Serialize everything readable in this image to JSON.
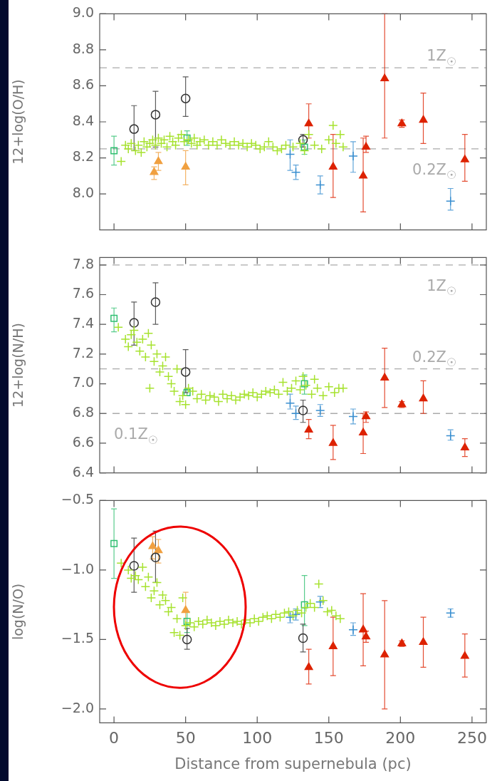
{
  "chart_data": [
    {
      "type": "scatter",
      "ylabel": "12+log(O/H)",
      "xlim": [
        -10,
        260
      ],
      "xticks": [
        0,
        50,
        100,
        150,
        200,
        250
      ],
      "ylim": [
        7.8,
        9.0
      ],
      "yticks": [
        {
          "value": 8.0,
          "label": "8.0"
        },
        {
          "value": 8.2,
          "label": "8.2"
        },
        {
          "value": 8.4,
          "label": "8.4"
        },
        {
          "value": 8.6,
          "label": "8.6"
        },
        {
          "value": 8.8,
          "label": "8.8"
        },
        {
          "value": 9.0,
          "label": "9.0"
        }
      ],
      "tick_labels": "y",
      "grid": false,
      "legend": false,
      "ref_lines": [
        {
          "axis": "y",
          "value": 8.7,
          "label": "1Z$_{☉}$",
          "color": "#aaaaaa",
          "line_style": "dashed"
        },
        {
          "axis": "y",
          "value": 8.25,
          "label": "0.2Z$_{☉}$",
          "color": "#aaaaaa",
          "line_style": "dashed"
        }
      ],
      "series": [
        {
          "type": "scatter",
          "marker": "cross",
          "color": "#a6e22e",
          "x": [
            5,
            8,
            10,
            12,
            15,
            17,
            19,
            21,
            23,
            25,
            27,
            29,
            31,
            33,
            35,
            37,
            39,
            41,
            43,
            45,
            47,
            49,
            52,
            54,
            56,
            58,
            60,
            63,
            66,
            69,
            72,
            75,
            78,
            81,
            84,
            87,
            90,
            93,
            96,
            99,
            102,
            105,
            108,
            111,
            114,
            117,
            120,
            125,
            130,
            133,
            136,
            140,
            145,
            150,
            153,
            155,
            158,
            160
          ],
          "values": [
            8.18,
            8.27,
            8.25,
            8.28,
            8.24,
            8.27,
            8.23,
            8.29,
            8.26,
            8.28,
            8.3,
            8.27,
            8.31,
            8.28,
            8.3,
            8.26,
            8.32,
            8.29,
            8.27,
            8.31,
            8.33,
            8.29,
            8.3,
            8.28,
            8.31,
            8.27,
            8.29,
            8.3,
            8.27,
            8.29,
            8.27,
            8.3,
            8.28,
            8.27,
            8.29,
            8.27,
            8.28,
            8.26,
            8.28,
            8.27,
            8.25,
            8.26,
            8.29,
            8.26,
            8.24,
            8.25,
            8.27,
            8.26,
            8.28,
            8.24,
            8.33,
            8.27,
            8.25,
            8.3,
            8.38,
            8.28,
            8.33,
            8.26
          ]
        },
        {
          "type": "scatter",
          "marker": "square",
          "color": "#2fbf71",
          "x": [
            0,
            51,
            133
          ],
          "values": [
            8.24,
            8.31,
            8.26
          ],
          "errors": [
            [
              8.16,
              8.32
            ],
            [
              8.27,
              8.35
            ],
            [
              8.22,
              8.3
            ]
          ]
        },
        {
          "type": "scatter",
          "marker": "circle",
          "color": "#333333",
          "x": [
            14,
            29,
            50,
            132
          ],
          "values": [
            8.36,
            8.44,
            8.53,
            8.3
          ],
          "errors": [
            [
              8.24,
              8.49
            ],
            [
              8.26,
              8.57
            ],
            [
              8.43,
              8.65
            ],
            [
              8.26,
              8.33
            ]
          ]
        },
        {
          "type": "scatter",
          "marker": "triangle",
          "color": "#f0a040",
          "x": [
            28,
            31,
            50
          ],
          "values": [
            8.12,
            8.18,
            8.15
          ],
          "errors": [
            [
              8.08,
              8.15
            ],
            [
              8.13,
              8.23
            ],
            [
              8.05,
              8.24
            ]
          ]
        },
        {
          "type": "scatter",
          "marker": "cross",
          "color": "#3a8fd0",
          "x": [
            123,
            127,
            144,
            167,
            235
          ],
          "values": [
            8.22,
            8.12,
            8.05,
            8.21,
            7.96
          ],
          "errors": [
            [
              8.13,
              8.3
            ],
            [
              8.08,
              8.16
            ],
            [
              8.0,
              8.1
            ],
            [
              8.12,
              8.29
            ],
            [
              7.91,
              8.03
            ]
          ]
        },
        {
          "type": "scatter",
          "marker": "triangle",
          "color": "#dd2200",
          "x": [
            136,
            153,
            174,
            176,
            189,
            201,
            216,
            245
          ],
          "values": [
            8.39,
            8.15,
            8.1,
            8.26,
            8.64,
            8.39,
            8.41,
            8.19
          ],
          "errors": [
            [
              8.31,
              8.5
            ],
            [
              7.98,
              8.33
            ],
            [
              7.9,
              8.31
            ],
            [
              8.23,
              8.32
            ],
            [
              8.31,
              9.0
            ],
            [
              8.37,
              8.41
            ],
            [
              8.28,
              8.56
            ],
            [
              8.07,
              8.33
            ]
          ]
        }
      ]
    },
    {
      "type": "scatter",
      "ylabel": "12+log(N/H)",
      "xlim": [
        -10,
        260
      ],
      "xticks": [
        0,
        50,
        100,
        150,
        200,
        250
      ],
      "ylim": [
        6.4,
        7.85
      ],
      "yticks": [
        {
          "value": 6.4,
          "label": "6.4"
        },
        {
          "value": 6.6,
          "label": "6.6"
        },
        {
          "value": 6.8,
          "label": "6.8"
        },
        {
          "value": 7.0,
          "label": "7.0"
        },
        {
          "value": 7.2,
          "label": "7.2"
        },
        {
          "value": 7.4,
          "label": "7.4"
        },
        {
          "value": 7.6,
          "label": "7.6"
        },
        {
          "value": 7.8,
          "label": "7.8"
        }
      ],
      "tick_labels": "y",
      "grid": false,
      "legend": false,
      "ref_lines": [
        {
          "axis": "y",
          "value": 7.8,
          "label": "1Z$_{☉}$",
          "color": "#aaaaaa",
          "line_style": "dashed"
        },
        {
          "axis": "y",
          "value": 7.1,
          "label": "0.2Z$_{☉}$",
          "color": "#aaaaaa",
          "line_style": "dashed"
        },
        {
          "axis": "y",
          "value": 6.8,
          "label": "0.1Z$_{☉}$",
          "color": "#aaaaaa",
          "line_style": "dashed"
        }
      ],
      "series": [
        {
          "type": "scatter",
          "marker": "cross",
          "color": "#a6e22e",
          "x": [
            3,
            8,
            10,
            12,
            14,
            16,
            18,
            20,
            22,
            24,
            25,
            26,
            28,
            30,
            32,
            34,
            36,
            38,
            40,
            42,
            44,
            46,
            48,
            50,
            52,
            55,
            58,
            61,
            64,
            67,
            70,
            73,
            76,
            79,
            82,
            85,
            88,
            91,
            94,
            97,
            100,
            103,
            106,
            109,
            112,
            115,
            118,
            121,
            124,
            127,
            130,
            132,
            134,
            138,
            140,
            142,
            146,
            150,
            154,
            157,
            160
          ],
          "values": [
            7.38,
            7.3,
            7.25,
            7.33,
            7.36,
            7.28,
            7.22,
            7.3,
            7.18,
            7.34,
            6.97,
            7.26,
            7.15,
            7.2,
            7.08,
            7.12,
            7.18,
            7.05,
            7.0,
            6.95,
            7.1,
            6.88,
            6.92,
            6.86,
            6.97,
            6.95,
            6.9,
            6.93,
            6.89,
            6.92,
            6.91,
            6.88,
            6.93,
            6.9,
            6.92,
            6.89,
            6.91,
            6.93,
            6.92,
            6.94,
            6.91,
            6.93,
            6.95,
            6.94,
            6.96,
            6.93,
            7.01,
            6.95,
            6.97,
            7.02,
            6.96,
            7.05,
            6.99,
            6.93,
            7.03,
            6.97,
            6.92,
            6.98,
            6.94,
            6.97,
            6.97
          ]
        },
        {
          "type": "scatter",
          "marker": "square",
          "color": "#2fbf71",
          "x": [
            0,
            51,
            133
          ],
          "values": [
            7.44,
            6.94,
            7.0
          ],
          "errors": [
            [
              7.35,
              7.51
            ],
            [
              6.92,
              6.97
            ],
            [
              6.93,
              7.06
            ]
          ]
        },
        {
          "type": "scatter",
          "marker": "circle",
          "color": "#333333",
          "x": [
            14,
            29,
            50,
            132
          ],
          "values": [
            7.41,
            7.55,
            7.08,
            6.82
          ],
          "errors": [
            [
              7.26,
              7.55
            ],
            [
              7.4,
              7.68
            ],
            [
              6.94,
              7.23
            ],
            [
              6.74,
              6.89
            ]
          ]
        },
        {
          "type": "scatter",
          "marker": "cross",
          "color": "#3a8fd0",
          "x": [
            123,
            127,
            144,
            167,
            235
          ],
          "values": [
            6.87,
            6.8,
            6.82,
            6.78,
            6.65
          ],
          "errors": [
            [
              6.83,
              6.93
            ],
            [
              6.76,
              6.85
            ],
            [
              6.78,
              6.86
            ],
            [
              6.73,
              6.83
            ],
            [
              6.62,
              6.69
            ]
          ]
        },
        {
          "type": "scatter",
          "marker": "triangle",
          "color": "#dd2200",
          "x": [
            136,
            153,
            174,
            176,
            189,
            201,
            216,
            245
          ],
          "values": [
            6.69,
            6.6,
            6.67,
            6.78,
            7.04,
            6.86,
            6.9,
            6.57
          ],
          "errors": [
            [
              6.63,
              6.76
            ],
            [
              6.49,
              6.72
            ],
            [
              6.53,
              6.8
            ],
            [
              6.74,
              6.81
            ],
            [
              6.84,
              7.24
            ],
            [
              6.84,
              6.88
            ],
            [
              6.8,
              7.02
            ],
            [
              6.51,
              6.63
            ]
          ]
        }
      ]
    },
    {
      "type": "scatter",
      "xlabel": "Distance from supernebula (pc)",
      "ylabel": "log(N/O)",
      "xlim": [
        -10,
        260
      ],
      "xticks": [
        0,
        50,
        100,
        150,
        200,
        250
      ],
      "ylim": [
        -2.1,
        -0.5
      ],
      "yticks": [
        {
          "value": -2.0,
          "label": "−2.0"
        },
        {
          "value": -1.5,
          "label": "−1.5"
        },
        {
          "value": -1.0,
          "label": "−1.0"
        },
        {
          "value": -0.5,
          "label": "−0.5"
        }
      ],
      "grid": false,
      "legend": false,
      "series": [
        {
          "type": "scatter",
          "marker": "cross",
          "color": "#a6e22e",
          "x": [
            5,
            10,
            12,
            15,
            17,
            20,
            22,
            24,
            26,
            28,
            30,
            32,
            34,
            36,
            38,
            40,
            42,
            44,
            46,
            48,
            50,
            53,
            56,
            59,
            62,
            65,
            68,
            71,
            74,
            77,
            80,
            83,
            86,
            89,
            92,
            95,
            98,
            101,
            104,
            107,
            110,
            113,
            116,
            119,
            122,
            125,
            128,
            131,
            134,
            137,
            140,
            143,
            146,
            149,
            152,
            155,
            158
          ],
          "values": [
            -0.95,
            -1.0,
            -1.06,
            -1.04,
            -1.07,
            -0.98,
            -1.12,
            -1.05,
            -1.2,
            -1.15,
            -1.09,
            -1.25,
            -1.18,
            -1.22,
            -1.3,
            -1.27,
            -1.45,
            -1.35,
            -1.47,
            -1.2,
            -1.4,
            -1.38,
            -1.41,
            -1.37,
            -1.39,
            -1.36,
            -1.38,
            -1.4,
            -1.37,
            -1.39,
            -1.36,
            -1.38,
            -1.37,
            -1.39,
            -1.36,
            -1.38,
            -1.35,
            -1.37,
            -1.34,
            -1.33,
            -1.35,
            -1.32,
            -1.34,
            -1.31,
            -1.3,
            -1.33,
            -1.29,
            -1.31,
            -1.27,
            -1.24,
            -1.27,
            -1.1,
            -1.22,
            -1.3,
            -1.29,
            -1.33,
            -1.35
          ]
        },
        {
          "type": "scatter",
          "marker": "square",
          "color": "#2fbf71",
          "x": [
            0,
            51,
            133
          ],
          "values": [
            -0.81,
            -1.37,
            -1.25
          ],
          "errors": [
            [
              -1.06,
              -0.56
            ],
            [
              -1.45,
              -1.3
            ],
            [
              -1.4,
              -1.04
            ]
          ]
        },
        {
          "type": "scatter",
          "marker": "circle",
          "color": "#333333",
          "x": [
            14,
            29,
            51,
            132
          ],
          "values": [
            -0.97,
            -0.91,
            -1.5,
            -1.49
          ],
          "errors": [
            [
              -1.16,
              -0.77
            ],
            [
              -1.09,
              -0.72
            ],
            [
              -1.57,
              -1.42
            ],
            [
              -1.59,
              -1.39
            ]
          ]
        },
        {
          "type": "scatter",
          "marker": "triangle",
          "color": "#f0a040",
          "x": [
            27,
            31,
            50
          ],
          "values": [
            -0.83,
            -0.86,
            -1.29
          ],
          "errors": [
            [
              -0.92,
              -0.76
            ],
            [
              -0.95,
              -0.78
            ],
            [
              -1.4,
              -1.16
            ]
          ]
        },
        {
          "type": "scatter",
          "marker": "cross",
          "color": "#3a8fd0",
          "x": [
            123,
            127,
            144,
            167,
            235
          ],
          "values": [
            -1.34,
            -1.32,
            -1.23,
            -1.43,
            -1.31
          ],
          "errors": [
            [
              -1.38,
              -1.3
            ],
            [
              -1.36,
              -1.28
            ],
            [
              -1.27,
              -1.19
            ],
            [
              -1.47,
              -1.38
            ],
            [
              -1.34,
              -1.28
            ]
          ]
        },
        {
          "type": "scatter",
          "marker": "triangle",
          "color": "#dd2200",
          "x": [
            136,
            153,
            174,
            176,
            189,
            201,
            216,
            245
          ],
          "values": [
            -1.7,
            -1.55,
            -1.43,
            -1.48,
            -1.61,
            -1.53,
            -1.52,
            -1.62
          ],
          "errors": [
            [
              -1.82,
              -1.57
            ],
            [
              -1.76,
              -1.34
            ],
            [
              -1.69,
              -1.17
            ],
            [
              -1.52,
              -1.44
            ],
            [
              -2.0,
              -1.22
            ],
            [
              -1.55,
              -1.51
            ],
            [
              -1.7,
              -1.34
            ],
            [
              -1.77,
              -1.46
            ]
          ]
        }
      ]
    }
  ]
}
